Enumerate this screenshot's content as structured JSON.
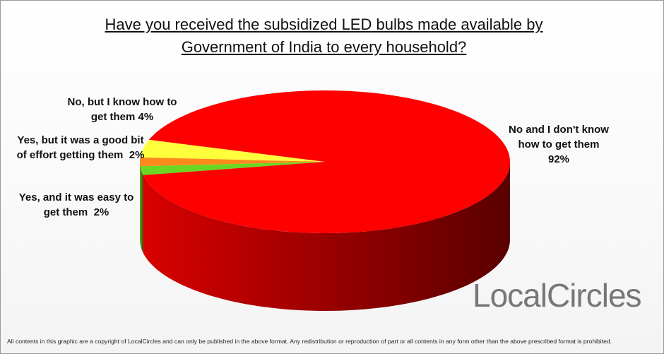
{
  "chart_data": {
    "type": "pie3d",
    "title": "Have you received the subsidized LED bulbs made available by Government of India to every household?",
    "categories": [
      "No, but I know how to get them",
      "Yes, but it was a good bit of effort getting them",
      "Yes, and it was easy to get them",
      "No and I don't know how to get them"
    ],
    "values": [
      4,
      2,
      2,
      92
    ],
    "value_labels": [
      "4%",
      "2%",
      "2%",
      "92%"
    ],
    "colors": [
      "#ffff3c",
      "#ff8a1c",
      "#6ad823",
      "#ff0000"
    ]
  },
  "logo": "LocalCircles",
  "footer": "All contents in this graphic are a copyright of LocalCircles and can only be published in the above format. Any redistribution or reproduction of part or all contents in any form other than the above prescribed format is prohibited."
}
